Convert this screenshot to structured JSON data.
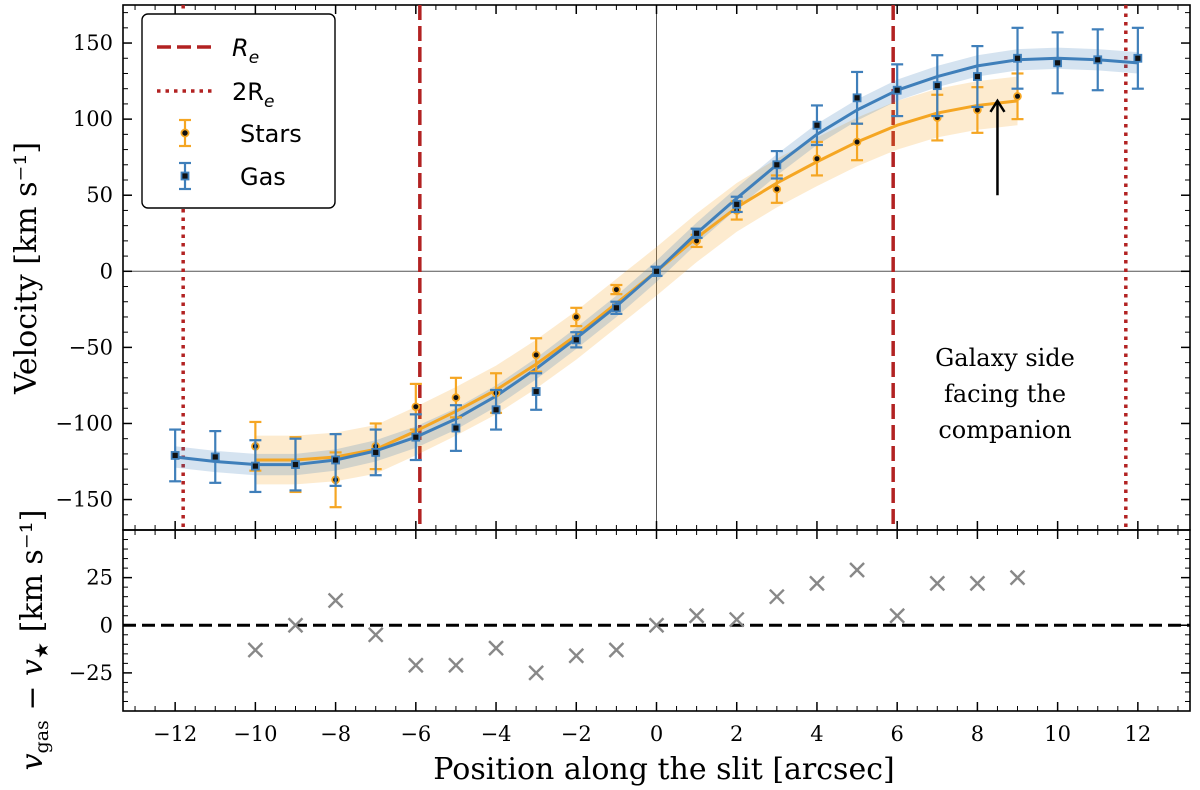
{
  "chart_data": [
    {
      "type": "line",
      "xlabel": "Position along the slit [arcsec]",
      "ylabel": "Velocity [km s⁻¹]",
      "xlim": [
        -13.3,
        13.3
      ],
      "ylim": [
        -170,
        175
      ],
      "xticks": [
        -12,
        -10,
        -8,
        -6,
        -4,
        -2,
        0,
        2,
        4,
        6,
        8,
        10,
        12
      ],
      "yticks": [
        -150,
        -100,
        -50,
        0,
        50,
        100,
        150
      ],
      "grid": false,
      "legend_position": "top-left",
      "reference_lines": [
        {
          "kind": "vertical",
          "label": "Re",
          "style": "dashed",
          "color": "#b22222",
          "x": [
            -5.9,
            5.9
          ]
        },
        {
          "kind": "vertical",
          "label": "2Re",
          "style": "dotted",
          "color": "#b22222",
          "x": [
            -11.8,
            11.7
          ]
        }
      ],
      "series": [
        {
          "name": "Stars",
          "color": "#f5a623",
          "marker": "circle",
          "x": [
            -10,
            -9,
            -8,
            -7,
            -6,
            -5,
            -4,
            -3,
            -2,
            -1,
            1,
            2,
            3,
            4,
            5,
            7,
            8,
            9
          ],
          "y": [
            -115,
            -127,
            -137,
            -115,
            -89,
            -83,
            -80,
            -55,
            -30,
            -12,
            20,
            40,
            54,
            74,
            85,
            101,
            106,
            115
          ],
          "yerr": [
            16,
            18,
            18,
            15,
            15,
            13,
            13,
            11,
            6,
            3,
            4,
            6,
            9,
            11,
            12,
            15,
            15,
            15
          ],
          "model_x": [
            -10,
            -9,
            -8,
            -7,
            -6,
            -5,
            -4,
            -3,
            -2,
            -1,
            0,
            1,
            2,
            3,
            4,
            5,
            6,
            7,
            8,
            9
          ],
          "model_y": [
            -124,
            -124,
            -122,
            -117,
            -105,
            -92,
            -78,
            -61,
            -42,
            -21,
            0,
            22,
            42,
            58,
            72,
            85,
            96,
            104,
            109,
            112
          ],
          "band": 16
        },
        {
          "name": "Gas",
          "color": "#3f7fba",
          "marker": "square",
          "x": [
            -12,
            -11,
            -10,
            -9,
            -8,
            -7,
            -6,
            -5,
            -4,
            -3,
            -2,
            -1,
            0,
            1,
            2,
            3,
            4,
            5,
            6,
            7,
            8,
            9,
            10,
            11,
            12
          ],
          "y": [
            -121,
            -122,
            -128,
            -127,
            -124,
            -119,
            -109,
            -103,
            -91,
            -79,
            -45,
            -24,
            0,
            25,
            44,
            70,
            96,
            114,
            119,
            122,
            128,
            140,
            137,
            139,
            140
          ],
          "yerr": [
            17,
            17,
            17,
            17,
            17,
            15,
            15,
            15,
            13,
            12,
            5,
            4,
            3,
            3,
            5,
            9,
            13,
            17,
            17,
            20,
            20,
            20,
            20,
            20,
            20
          ],
          "model_x": [
            -12,
            -11,
            -10,
            -9,
            -8,
            -7,
            -6,
            -5,
            -4,
            -3,
            -2,
            -1,
            0,
            1,
            2,
            3,
            4,
            5,
            6,
            7,
            8,
            9,
            10,
            11,
            12
          ],
          "model_y": [
            -122,
            -125,
            -127,
            -127,
            -124,
            -118,
            -109,
            -97,
            -82,
            -64,
            -44,
            -23,
            0,
            25,
            48,
            70,
            90,
            106,
            119,
            128,
            135,
            139,
            140,
            139,
            137
          ],
          "band": 7
        }
      ],
      "annotation": {
        "lines": [
          "Galaxy side",
          "facing the",
          "companion"
        ],
        "arrow_from": [
          8.5,
          50
        ],
        "arrow_to": [
          8.5,
          112
        ]
      }
    },
    {
      "type": "scatter",
      "xlabel": "Position along the slit [arcsec]",
      "ylabel_main": "v",
      "ylabel_sub1": "gas",
      "ylabel_minus": " − v",
      "ylabel_sub2": "★",
      "ylabel_units": " [km s⁻¹]",
      "xlim": [
        -13.3,
        13.3
      ],
      "ylim": [
        -45,
        50
      ],
      "xticks": [
        -12,
        -10,
        -8,
        -6,
        -4,
        -2,
        0,
        2,
        4,
        6,
        8,
        10,
        12
      ],
      "yticks": [
        -25,
        0,
        25
      ],
      "grid": false,
      "reference_line_y": 0,
      "series": [
        {
          "color": "#888888",
          "marker": "x",
          "x": [
            -10,
            -9,
            -8,
            -7,
            -6,
            -5,
            -4,
            -3,
            -2,
            -1,
            0,
            1,
            2,
            3,
            4,
            5,
            6,
            7,
            8,
            9
          ],
          "y": [
            -13,
            0,
            13,
            -5,
            -21,
            -21,
            -12,
            -25,
            -16,
            -13,
            0,
            5,
            3,
            15,
            22,
            29,
            5,
            22,
            22,
            25
          ]
        }
      ]
    }
  ],
  "labels": {
    "tick_labels_x": [
      "−12",
      "−10",
      "−8",
      "−6",
      "−4",
      "−2",
      "0",
      "2",
      "4",
      "6",
      "8",
      "10",
      "12"
    ],
    "tick_labels_y_top": [
      "−150",
      "−100",
      "−50",
      "0",
      "50",
      "100",
      "150"
    ],
    "tick_labels_y_bottom": [
      "−25",
      "0",
      "25"
    ],
    "legend_re_main": "R",
    "legend_re_sub": "e",
    "legend_2re_main": "2R",
    "legend_2re_sub": "e"
  }
}
